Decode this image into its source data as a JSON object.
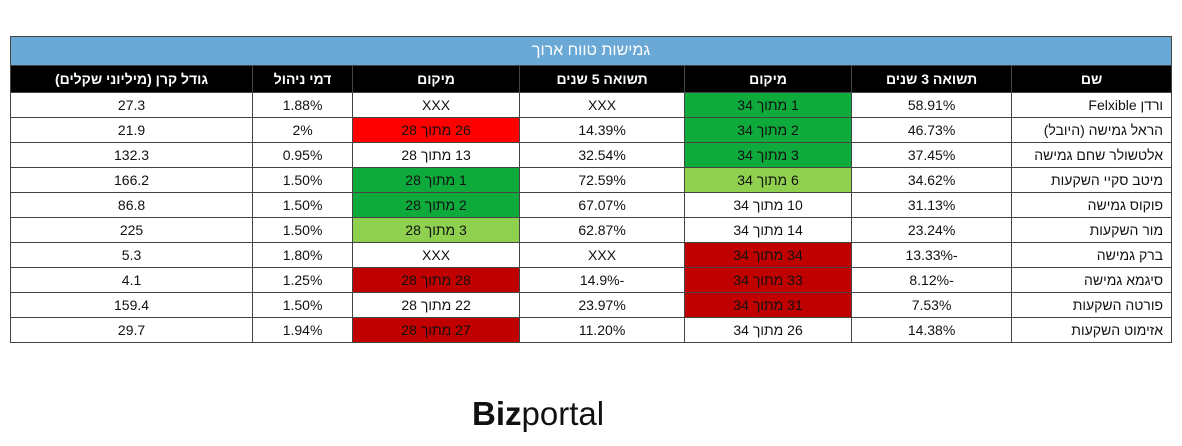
{
  "title": "גמישות טווח ארוך",
  "columns": [
    "שם",
    "תשואה 3 שנים",
    "מיקום",
    "תשואה 5 שנים",
    "מיקום",
    "דמי ניהול",
    "גודל קרן (מיליוני שקלים)"
  ],
  "rows": [
    {
      "name": "ורדן Felxible",
      "ret3": "58.91%",
      "rank3": "1 מתוך 34",
      "rank3_color": "green-dark",
      "ret5": "XXX",
      "rank5": "XXX",
      "rank5_color": "",
      "fee": "1.88%",
      "size": "27.3"
    },
    {
      "name": "הראל גמישה (היובל)",
      "ret3": "46.73%",
      "rank3": "2 מתוך 34",
      "rank3_color": "green-dark",
      "ret5": "14.39%",
      "rank5": "26 מתוך 28",
      "rank5_color": "red-bright",
      "fee": "2%",
      "size": "21.9"
    },
    {
      "name": "אלטשולר שחם גמישה",
      "ret3": "37.45%",
      "rank3": "3 מתוך 34",
      "rank3_color": "green-dark",
      "ret5": "32.54%",
      "rank5": "13 מתוך 28",
      "rank5_color": "",
      "fee": "0.95%",
      "size": "132.3"
    },
    {
      "name": "מיטב סקיי השקעות",
      "ret3": "34.62%",
      "rank3": "6 מתוך 34",
      "rank3_color": "green-light",
      "ret5": "72.59%",
      "rank5": "1 מתוך 28",
      "rank5_color": "green-dark",
      "fee": "1.50%",
      "size": "166.2"
    },
    {
      "name": "פוקוס גמישה",
      "ret3": "31.13%",
      "rank3": "10 מתוך 34",
      "rank3_color": "",
      "ret5": "67.07%",
      "rank5": "2 מתוך 28",
      "rank5_color": "green-dark",
      "fee": "1.50%",
      "size": "86.8"
    },
    {
      "name": "מור השקעות",
      "ret3": "23.24%",
      "rank3": "14 מתוך 34",
      "rank3_color": "",
      "ret5": "62.87%",
      "rank5": "3 מתוך 28",
      "rank5_color": "green-light",
      "fee": "1.50%",
      "size": "225"
    },
    {
      "name": "ברק גמישה",
      "ret3": "-13.33%",
      "rank3": "34 מתוך 34",
      "rank3_color": "red-dark",
      "ret5": "XXX",
      "rank5": "XXX",
      "rank5_color": "",
      "fee": "1.80%",
      "size": "5.3"
    },
    {
      "name": "סיגמא גמישה",
      "ret3": "-8.12%",
      "rank3": "33 מתוך 34",
      "rank3_color": "red-dark",
      "ret5": "-14.9%",
      "rank5": "28 מתוך 28",
      "rank5_color": "red-dark",
      "fee": "1.25%",
      "size": "4.1"
    },
    {
      "name": "פורטה השקעות",
      "ret3": "7.53%",
      "rank3": "31 מתוך 34",
      "rank3_color": "red-dark",
      "ret5": "23.97%",
      "rank5": "22 מתוך 28",
      "rank5_color": "",
      "fee": "1.50%",
      "size": "159.4"
    },
    {
      "name": "אזימוט השקעות",
      "ret3": "14.38%",
      "rank3": "26 מתוך 34",
      "rank3_color": "",
      "ret5": "11.20%",
      "rank5": "27 מתוך 28",
      "rank5_color": "red-dark",
      "fee": "1.94%",
      "size": "29.7"
    }
  ],
  "logo": {
    "bold": "Biz",
    "rest": "portal"
  },
  "colors": {
    "title_bg": "#6aa8d6",
    "header_bg": "#000000",
    "green-dark": "#0eaa3c",
    "green-light": "#8fd14f",
    "red-bright": "#ff0000",
    "red-dark": "#c00000"
  }
}
